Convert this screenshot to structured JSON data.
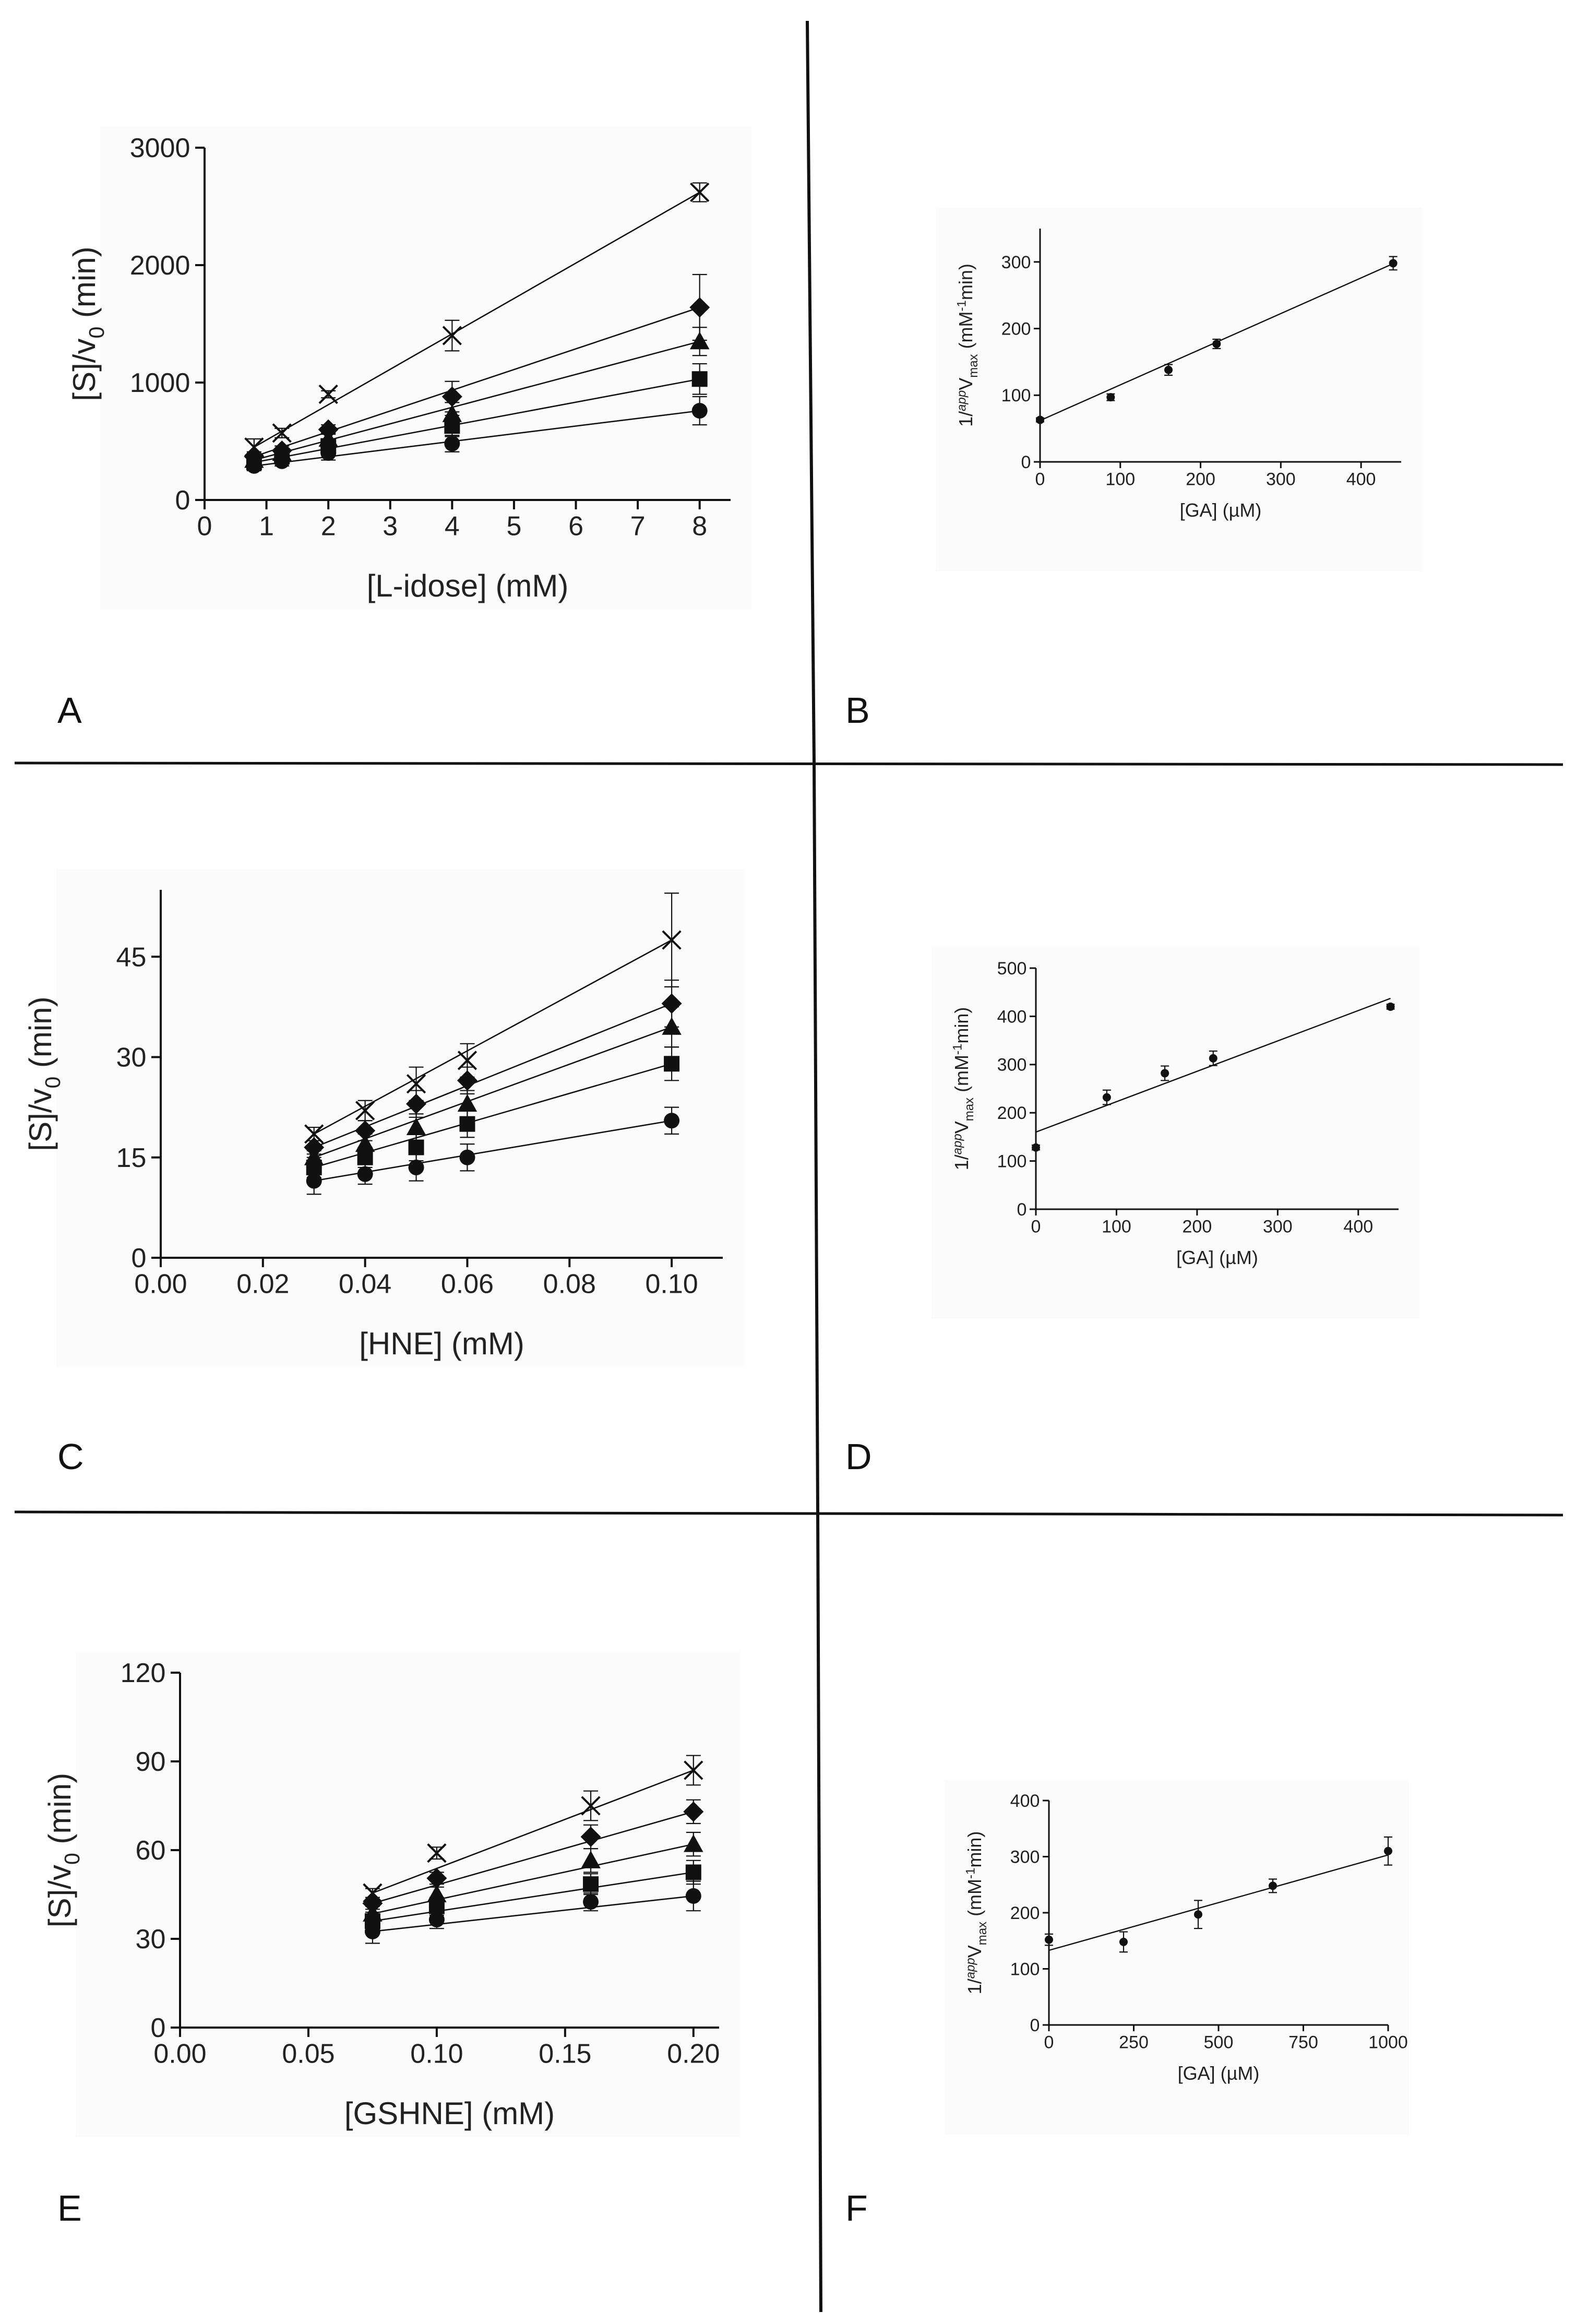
{
  "panel_labels": [
    "A",
    "B",
    "C",
    "D",
    "E",
    "F"
  ],
  "chart_data": [
    {
      "panel": "A",
      "type": "scatter",
      "style": "main",
      "xlabel": "[L-idose] (mM)",
      "ylabel": "[S]/v0 (min)",
      "ylabel_base": "[S]/v",
      "ylabel_sub": "0",
      "ylabel_rest": " (min)",
      "xlim": [
        0,
        8.5
      ],
      "ylim": [
        0,
        3000
      ],
      "xticks": [
        0,
        1,
        2,
        3,
        4,
        5,
        6,
        7,
        8
      ],
      "yticks": [
        0,
        1000,
        2000,
        3000
      ],
      "xtick_labels": [
        "0",
        "1",
        "2",
        "3",
        "4",
        "5",
        "6",
        "7",
        "8"
      ],
      "ytick_labels": [
        "0",
        "1000",
        "2000",
        "3000"
      ],
      "x": [
        0.8,
        1.25,
        2,
        4,
        8
      ],
      "series": [
        {
          "marker": "cross",
          "values": [
            450,
            570,
            900,
            1400,
            2620
          ],
          "errors": [
            70,
            40,
            30,
            130,
            80
          ]
        },
        {
          "marker": "diamond",
          "values": [
            370,
            420,
            600,
            880,
            1640
          ],
          "errors": [
            40,
            40,
            40,
            130,
            280
          ]
        },
        {
          "marker": "triangle",
          "values": [
            340,
            400,
            520,
            730,
            1350
          ],
          "errors": [
            40,
            40,
            50,
            100,
            120
          ]
        },
        {
          "marker": "square",
          "values": [
            320,
            370,
            460,
            630,
            1030
          ],
          "errors": [
            40,
            40,
            50,
            90,
            130
          ]
        },
        {
          "marker": "circle",
          "values": [
            290,
            330,
            400,
            480,
            760
          ],
          "errors": [
            40,
            40,
            60,
            70,
            120
          ]
        }
      ]
    },
    {
      "panel": "B",
      "type": "scatter",
      "style": "small",
      "xlabel": "[GA] (µM)",
      "ylabel": "1/appVmax (mM-1min)",
      "ylabel_pre": "1/",
      "ylabel_sup": "app",
      "ylabel_v": "V",
      "ylabel_sub": "max",
      "ylabel_unit1": " (mM",
      "ylabel_unit_sup": "-1",
      "ylabel_unit2": "min)",
      "xlim": [
        0,
        450
      ],
      "ylim": [
        0,
        350
      ],
      "xticks": [
        0,
        100,
        200,
        300,
        400
      ],
      "yticks": [
        0,
        100,
        200,
        300
      ],
      "xtick_labels": [
        "0",
        "100",
        "200",
        "300",
        "400"
      ],
      "ytick_labels": [
        "0",
        "100",
        "200",
        "300"
      ],
      "x": [
        0,
        88,
        160,
        220,
        440
      ],
      "series": [
        {
          "marker": "circle",
          "values": [
            63,
            97,
            138,
            177,
            298
          ],
          "errors": [
            3,
            5,
            8,
            7,
            10
          ]
        }
      ],
      "fit": {
        "slope": 0.535,
        "intercept": 62
      }
    },
    {
      "panel": "C",
      "type": "scatter",
      "style": "main",
      "xlabel": "[HNE] (mM)",
      "ylabel": "[S]/v0 (min)",
      "ylabel_base": "[S]/v",
      "ylabel_sub": "0",
      "ylabel_rest": " (min)",
      "xlim": [
        0,
        0.11
      ],
      "ylim": [
        0,
        55
      ],
      "xticks": [
        0,
        0.02,
        0.04,
        0.06,
        0.08,
        0.1
      ],
      "yticks": [
        0,
        15,
        30,
        45
      ],
      "xtick_labels": [
        "0.00",
        "0.02",
        "0.04",
        "0.06",
        "0.08",
        "0.10"
      ],
      "ytick_labels": [
        "0",
        "15",
        "30",
        "45"
      ],
      "x": [
        0.03,
        0.04,
        0.05,
        0.06,
        0.1
      ],
      "series": [
        {
          "marker": "cross",
          "values": [
            18.5,
            22,
            26,
            29.5,
            47.5
          ],
          "errors": [
            1,
            1.5,
            2.5,
            2.5,
            7
          ]
        },
        {
          "marker": "diamond",
          "values": [
            16.5,
            19,
            23,
            26.5,
            38
          ],
          "errors": [
            1,
            1.5,
            2,
            2,
            3.5
          ]
        },
        {
          "marker": "triangle",
          "values": [
            15,
            17,
            19.5,
            23,
            34.5
          ],
          "errors": [
            1,
            1.5,
            2,
            2,
            3
          ]
        },
        {
          "marker": "square",
          "values": [
            13.5,
            15,
            16.5,
            20,
            29
          ],
          "errors": [
            1.5,
            1.5,
            2,
            2,
            2.5
          ]
        },
        {
          "marker": "circle",
          "values": [
            11.5,
            12.5,
            13.5,
            15,
            20.5
          ],
          "errors": [
            2,
            1.5,
            2,
            2,
            2
          ]
        }
      ]
    },
    {
      "panel": "D",
      "type": "scatter",
      "style": "small",
      "xlabel": "[GA] (µM)",
      "ylabel": "1/appVmax (mM-1min)",
      "ylabel_pre": "1/",
      "ylabel_sup": "app",
      "ylabel_v": "V",
      "ylabel_sub": "max",
      "ylabel_unit1": " (mM",
      "ylabel_unit_sup": "-1",
      "ylabel_unit2": "min)",
      "xlim": [
        0,
        450
      ],
      "ylim": [
        0,
        500
      ],
      "xticks": [
        0,
        100,
        200,
        300,
        400
      ],
      "yticks": [
        0,
        100,
        200,
        300,
        400,
        500
      ],
      "xtick_labels": [
        "0",
        "100",
        "200",
        "300",
        "400"
      ],
      "ytick_labels": [
        "0",
        "100",
        "200",
        "300",
        "400",
        "500"
      ],
      "x": [
        0,
        88,
        160,
        220,
        440
      ],
      "series": [
        {
          "marker": "circle",
          "values": [
            128,
            232,
            282,
            313,
            420
          ],
          "errors": [
            5,
            15,
            15,
            15,
            5
          ]
        }
      ],
      "fit": {
        "slope": 0.63,
        "intercept": 160
      }
    },
    {
      "panel": "E",
      "type": "scatter",
      "style": "main",
      "xlabel": "[GSHNE] (mM)",
      "ylabel": "[S]/v0 (min)",
      "ylabel_base": "[S]/v",
      "ylabel_sub": "0",
      "ylabel_rest": " (min)",
      "xlim": [
        0,
        0.21
      ],
      "ylim": [
        0,
        120
      ],
      "xticks": [
        0,
        0.05,
        0.1,
        0.15,
        0.2
      ],
      "yticks": [
        0,
        30,
        60,
        90,
        120
      ],
      "xtick_labels": [
        "0.00",
        "0.05",
        "0.10",
        "0.15",
        "0.20"
      ],
      "ytick_labels": [
        "0",
        "30",
        "60",
        "90",
        "120"
      ],
      "x": [
        0.075,
        0.1,
        0.16,
        0.2
      ],
      "series": [
        {
          "marker": "cross",
          "values": [
            45.5,
            59,
            75,
            87
          ],
          "errors": [
            1.5,
            2,
            5,
            5
          ]
        },
        {
          "marker": "diamond",
          "values": [
            42,
            50.5,
            64.5,
            73
          ],
          "errors": [
            2,
            2,
            4,
            4
          ]
        },
        {
          "marker": "triangle",
          "values": [
            38.5,
            45,
            56.5,
            62
          ],
          "errors": [
            2.5,
            2.5,
            4,
            4
          ]
        },
        {
          "marker": "square",
          "values": [
            36,
            41,
            48.5,
            52.5
          ],
          "errors": [
            3,
            3,
            3.5,
            4
          ]
        },
        {
          "marker": "circle",
          "values": [
            32.5,
            36.5,
            42.5,
            44.5
          ],
          "errors": [
            4,
            3,
            3,
            5
          ]
        }
      ]
    },
    {
      "panel": "F",
      "type": "scatter",
      "style": "small",
      "xlabel": "[GA] (µM)",
      "ylabel": "1/appVmax (mM-1min)",
      "ylabel_pre": "1/",
      "ylabel_sup": "app",
      "ylabel_v": "V",
      "ylabel_sub": "max",
      "ylabel_unit1": " (mM",
      "ylabel_unit_sup": "-1",
      "ylabel_unit2": "min)",
      "xlim": [
        0,
        1000
      ],
      "ylim": [
        0,
        400
      ],
      "xticks": [
        0,
        250,
        500,
        750,
        1000
      ],
      "yticks": [
        0,
        100,
        200,
        300,
        400
      ],
      "xtick_labels": [
        "0",
        "250",
        "500",
        "750",
        "1000"
      ],
      "ytick_labels": [
        "0",
        "100",
        "200",
        "300",
        "400"
      ],
      "x": [
        0,
        220,
        440,
        660,
        1000
      ],
      "series": [
        {
          "marker": "circle",
          "values": [
            152,
            148,
            197,
            248,
            310
          ],
          "errors": [
            10,
            18,
            25,
            12,
            25
          ]
        }
      ],
      "fit": {
        "slope": 0.17,
        "intercept": 133
      }
    }
  ]
}
